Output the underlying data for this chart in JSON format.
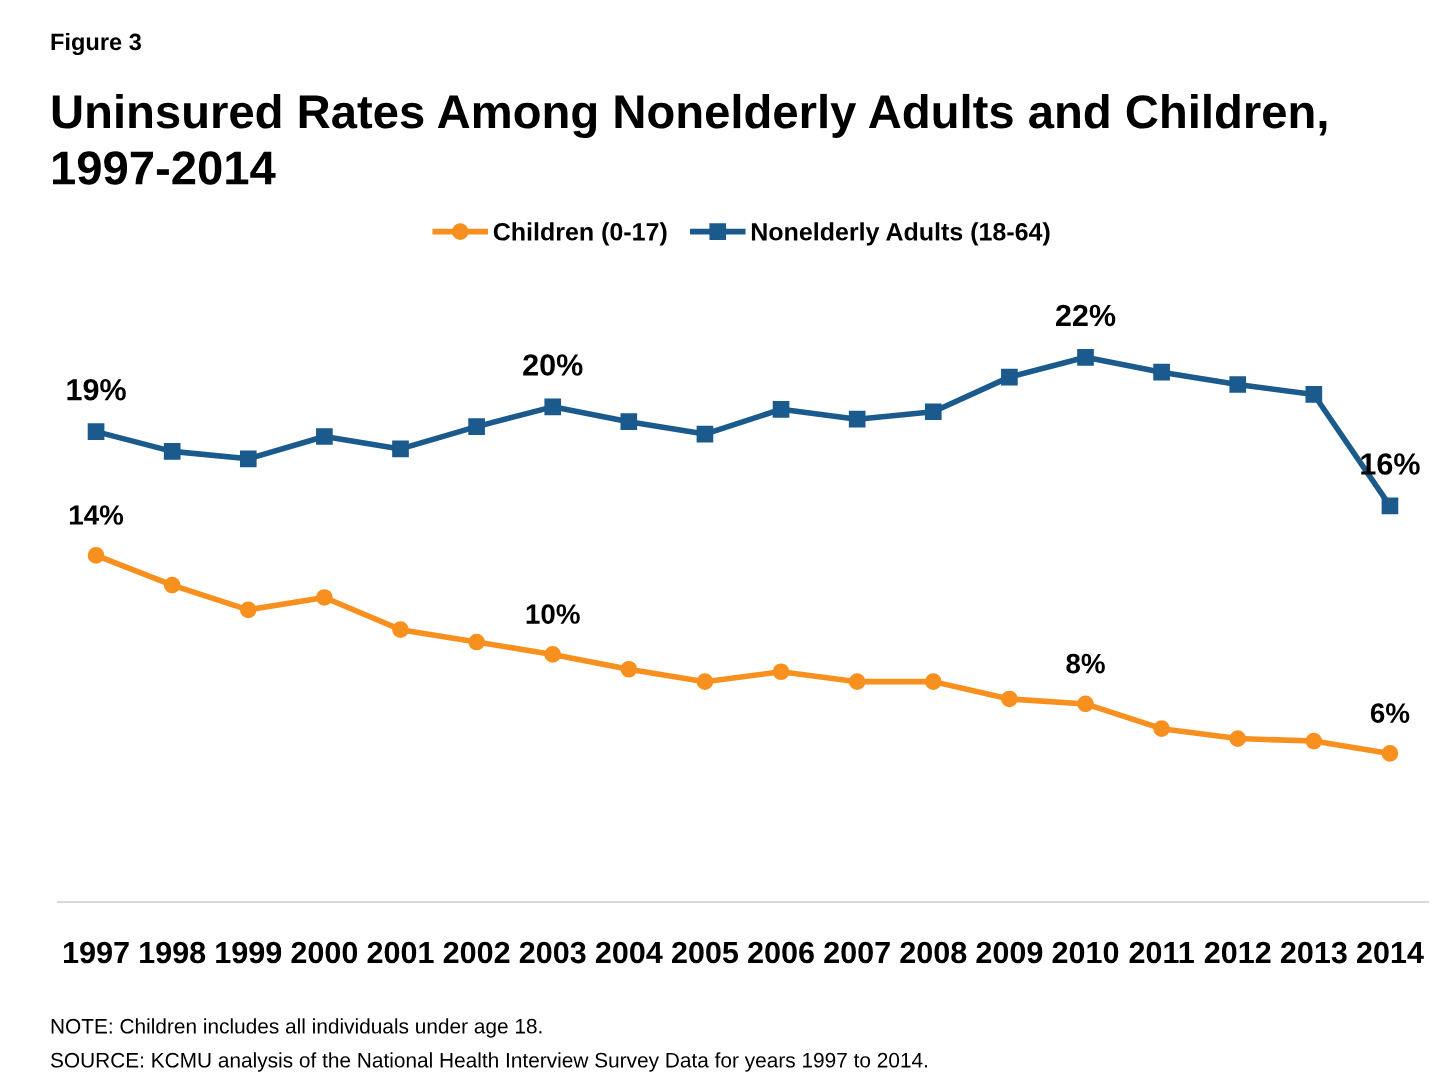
{
  "chart_data": {
    "type": "line",
    "title": "Uninsured Rates Among Nonelderly Adults and Children,\n1997-2014",
    "annotations": [
      "Figure 3",
      "NOTE: Children includes all individuals under age 18.",
      "SOURCE: KCMU analysis of the National Health Interview Survey Data for years 1997 to 2014."
    ],
    "categories": [
      "1997",
      "1998",
      "1999",
      "2000",
      "2001",
      "2002",
      "2003",
      "2004",
      "2005",
      "2006",
      "2007",
      "2008",
      "2009",
      "2010",
      "2011",
      "2012",
      "2013",
      "2014"
    ],
    "series": [
      {
        "name": "Children (0-17)",
        "color": "#f7901e",
        "marker": "circle",
        "values": [
          14,
          12.8,
          11.8,
          12.3,
          11.0,
          10.5,
          10,
          9.4,
          8.9,
          9.3,
          8.9,
          8.9,
          8.2,
          8,
          7.0,
          6.6,
          6.5,
          6
        ],
        "value_labels": [
          "14%",
          null,
          null,
          null,
          null,
          null,
          "10%",
          null,
          null,
          null,
          null,
          null,
          null,
          "8%",
          null,
          null,
          null,
          "6%"
        ]
      },
      {
        "name": "Nonelderly Adults (18-64)",
        "color": "#1b5a8c",
        "marker": "square",
        "values": [
          19,
          18.2,
          17.9,
          18.8,
          18.3,
          19.2,
          20,
          19.4,
          18.9,
          19.9,
          19.5,
          19.8,
          21.2,
          22,
          21.4,
          20.9,
          20.5,
          16
        ],
        "value_labels": [
          "19%",
          null,
          null,
          null,
          null,
          null,
          "20%",
          null,
          null,
          null,
          null,
          null,
          null,
          "22%",
          null,
          null,
          null,
          "16%"
        ]
      }
    ],
    "tick_labels": "x",
    "legend": "top",
    "line_style": "solid"
  }
}
